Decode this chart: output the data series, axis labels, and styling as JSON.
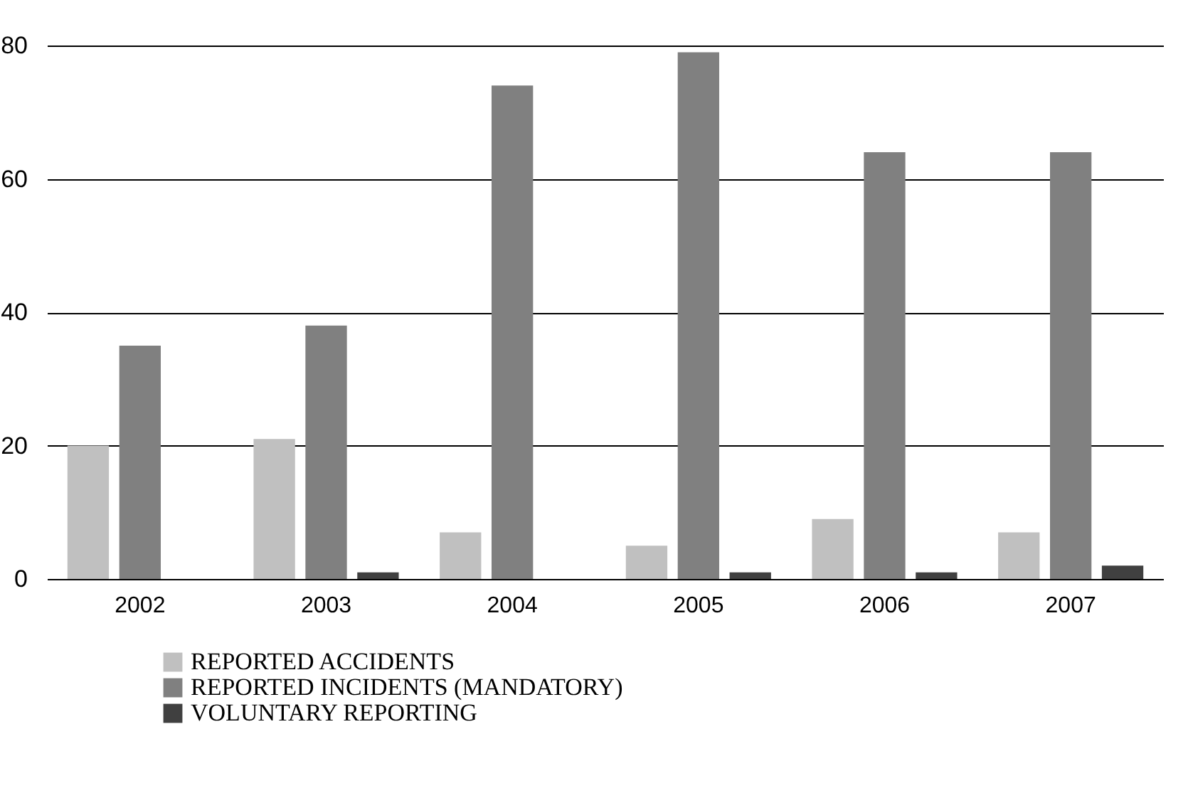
{
  "chart_data": {
    "type": "bar",
    "categories": [
      "2002",
      "2003",
      "2004",
      "2005",
      "2006",
      "2007"
    ],
    "series": [
      {
        "name": "REPORTED ACCIDENTS",
        "color": "#c0c0c0",
        "values": [
          20,
          21,
          7,
          5,
          9,
          7
        ]
      },
      {
        "name": "REPORTED INCIDENTS (MANDATORY)",
        "color": "#808080",
        "values": [
          35,
          38,
          74,
          79,
          64,
          64
        ]
      },
      {
        "name": "VOLUNTARY REPORTING",
        "color": "#404040",
        "values": [
          0,
          1,
          0,
          1,
          1,
          2
        ]
      }
    ],
    "ylim": [
      0,
      80
    ],
    "yticks": [
      0,
      20,
      40,
      60,
      80
    ],
    "grid": "y",
    "legend": "bottom"
  }
}
